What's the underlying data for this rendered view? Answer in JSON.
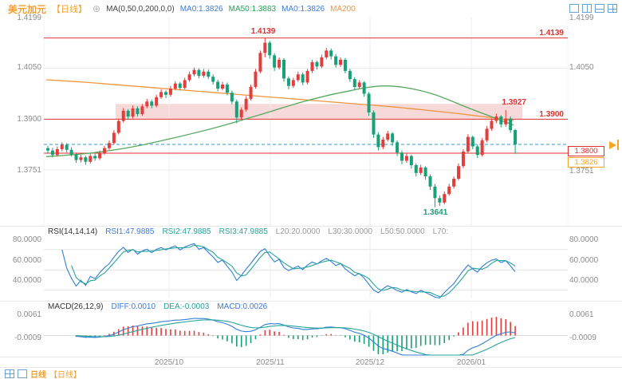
{
  "header": {
    "symbol": "美元加元",
    "period": "【日线】",
    "ma_settings": "MA(0,50,0,200,0,0)",
    "ma_items": [
      {
        "label": "MA0:1.3826"
      },
      {
        "label": "MA50:1.3883"
      },
      {
        "label": "MA0:1.3826"
      },
      {
        "label": "MA200"
      }
    ]
  },
  "icons": {
    "add_indicator": "⊕",
    "topbar_layout": [
      "layout-single",
      "layout-split-vertical",
      "layout-split-horizontal",
      "layout-grid"
    ],
    "bottombar_layout": [
      "layout-grid",
      "layout-single"
    ],
    "go_to_latest": "arrow-right"
  },
  "axes": {
    "price_left": [
      "1.4199",
      "1.4050",
      "1.3900",
      "1.3751"
    ],
    "price_right": [
      "1.4199",
      "1.4050",
      "1.3751"
    ],
    "rsi": [
      "80.0000",
      "60.0000",
      "40.0000"
    ],
    "macd": [
      "0.0061",
      "-0.0009"
    ],
    "dates": [
      "2025/10",
      "2025/11",
      "2025/12",
      "2026/01"
    ]
  },
  "levels_labels": {
    "peak": "1.4139",
    "r1": "1.4139",
    "r2": "1.3900",
    "recent_high": "1.3927",
    "support_tag": "1.3800",
    "price_tag": "1.3826",
    "low": "1.3641"
  },
  "rsi_header": {
    "title": "RSI(14,14,14)",
    "i1": "RSI1:47.9885",
    "i2": "RSI2:47.9885",
    "i3": "RSI3:47.9885",
    "l20": "L20:20.0000",
    "l30": "L30:30.0000",
    "l50": "L50:50.0000",
    "l70": "L70:"
  },
  "macd_header": {
    "title": "MACD(26,12,9)",
    "diff": "DIFF:0.0010",
    "dea": "DEA:-0.0003",
    "macd": "MACD:0.0026"
  },
  "bottom": {
    "label": "日线",
    "tag": "【日线】"
  },
  "chart_data": {
    "type": "candlestick",
    "title": "美元加元 日线 (USD/CAD Daily)",
    "x_axis_months": [
      "2025/10",
      "2025/11",
      "2025/12",
      "2026/01"
    ],
    "y_axis_ticks": [
      1.4199,
      1.405,
      1.39,
      1.3751
    ],
    "y_range": [
      1.3598,
      1.4199
    ],
    "levels": {
      "resistance_top": 1.4139,
      "resistance": 1.39,
      "support": 1.38,
      "current_price": 1.3826,
      "recent_high": 1.3927,
      "recent_low": 1.3641,
      "zone": [
        1.39,
        1.3945
      ]
    },
    "ma": {
      "ma0": 1.3826,
      "ma50": 1.3883,
      "ma50_curve": [
        1.379,
        1.38,
        1.3818,
        1.3845,
        1.3876,
        1.3912,
        1.395,
        1.398,
        1.3998,
        1.3978,
        1.393,
        1.3883
      ],
      "ma200_curve": [
        1.4016,
        1.4008,
        1.3998,
        1.3988,
        1.3978,
        1.3968,
        1.3958,
        1.3948,
        1.3938,
        1.3926,
        1.3912,
        1.3896
      ]
    },
    "candles": [
      [
        1.3815,
        1.3822,
        1.38,
        1.3808
      ],
      [
        1.3808,
        1.3816,
        1.3788,
        1.3795
      ],
      [
        1.3795,
        1.382,
        1.379,
        1.3812
      ],
      [
        1.3812,
        1.3832,
        1.3806,
        1.3825
      ],
      [
        1.3825,
        1.383,
        1.3802,
        1.381
      ],
      [
        1.381,
        1.3818,
        1.379,
        1.3796
      ],
      [
        1.3796,
        1.3802,
        1.3772,
        1.378
      ],
      [
        1.378,
        1.3795,
        1.3773,
        1.3788
      ],
      [
        1.3788,
        1.3793,
        1.3766,
        1.3775
      ],
      [
        1.3775,
        1.38,
        1.377,
        1.3792
      ],
      [
        1.3792,
        1.3798,
        1.3778,
        1.3785
      ],
      [
        1.3785,
        1.3808,
        1.378,
        1.38
      ],
      [
        1.38,
        1.3822,
        1.3795,
        1.3815
      ],
      [
        1.3815,
        1.3838,
        1.381,
        1.383
      ],
      [
        1.383,
        1.3868,
        1.3825,
        1.386
      ],
      [
        1.386,
        1.3902,
        1.3855,
        1.3895
      ],
      [
        1.3895,
        1.3933,
        1.389,
        1.3925
      ],
      [
        1.3925,
        1.393,
        1.39,
        1.3908
      ],
      [
        1.3908,
        1.394,
        1.3902,
        1.3932
      ],
      [
        1.3932,
        1.3938,
        1.3908,
        1.3915
      ],
      [
        1.3915,
        1.3945,
        1.391,
        1.3938
      ],
      [
        1.3938,
        1.396,
        1.3932,
        1.3952
      ],
      [
        1.3952,
        1.3958,
        1.3932,
        1.394
      ],
      [
        1.394,
        1.3972,
        1.3935,
        1.3965
      ],
      [
        1.3965,
        1.3988,
        1.396,
        1.398
      ],
      [
        1.398,
        1.3985,
        1.3962,
        1.3972
      ],
      [
        1.3972,
        1.3998,
        1.3966,
        1.399
      ],
      [
        1.399,
        1.4012,
        1.3985,
        1.4005
      ],
      [
        1.4005,
        1.401,
        1.3985,
        1.3992
      ],
      [
        1.3992,
        1.4022,
        1.3988,
        1.4015
      ],
      [
        1.4015,
        1.404,
        1.401,
        1.4032
      ],
      [
        1.4032,
        1.4052,
        1.4026,
        1.4045
      ],
      [
        1.4045,
        1.405,
        1.402,
        1.4028
      ],
      [
        1.4028,
        1.4048,
        1.4022,
        1.404
      ],
      [
        1.404,
        1.4046,
        1.4018,
        1.4025
      ],
      [
        1.4025,
        1.4032,
        1.4002,
        1.401
      ],
      [
        1.401,
        1.4016,
        1.3982,
        1.399
      ],
      [
        1.399,
        1.401,
        1.3985,
        1.4002
      ],
      [
        1.4002,
        1.4008,
        1.397,
        1.3978
      ],
      [
        1.3978,
        1.3984,
        1.3944,
        1.3952
      ],
      [
        1.3952,
        1.3958,
        1.3888,
        1.3905
      ],
      [
        1.3905,
        1.3935,
        1.3898,
        1.3928
      ],
      [
        1.3928,
        1.3968,
        1.3922,
        1.396
      ],
      [
        1.396,
        1.4002,
        1.3955,
        1.3995
      ],
      [
        1.3995,
        1.4048,
        1.399,
        1.404
      ],
      [
        1.404,
        1.4102,
        1.4035,
        1.4095
      ],
      [
        1.4095,
        1.4139,
        1.4082,
        1.4125
      ],
      [
        1.4125,
        1.413,
        1.4078,
        1.4088
      ],
      [
        1.4088,
        1.4094,
        1.4042,
        1.4052
      ],
      [
        1.4052,
        1.4082,
        1.4046,
        1.4075
      ],
      [
        1.4075,
        1.408,
        1.401,
        1.402
      ],
      [
        1.402,
        1.4026,
        1.3988,
        1.3998
      ],
      [
        1.3998,
        1.4022,
        1.3992,
        1.4015
      ],
      [
        1.4015,
        1.404,
        1.401,
        1.4032
      ],
      [
        1.4032,
        1.4038,
        1.4,
        1.4008
      ],
      [
        1.4008,
        1.4048,
        1.4002,
        1.4042
      ],
      [
        1.4042,
        1.4075,
        1.4036,
        1.4068
      ],
      [
        1.4068,
        1.4072,
        1.4046,
        1.4055
      ],
      [
        1.4055,
        1.409,
        1.405,
        1.4082
      ],
      [
        1.4082,
        1.411,
        1.4076,
        1.4102
      ],
      [
        1.4102,
        1.4108,
        1.4076,
        1.4085
      ],
      [
        1.4085,
        1.4092,
        1.4052,
        1.406
      ],
      [
        1.406,
        1.4082,
        1.4054,
        1.4075
      ],
      [
        1.4075,
        1.408,
        1.4035,
        1.4042
      ],
      [
        1.4042,
        1.4048,
        1.401,
        1.4018
      ],
      [
        1.4018,
        1.4024,
        1.3986,
        1.3995
      ],
      [
        1.3995,
        1.4015,
        1.399,
        1.4008
      ],
      [
        1.4008,
        1.4012,
        1.3966,
        1.3975
      ],
      [
        1.3975,
        1.398,
        1.391,
        1.392
      ],
      [
        1.392,
        1.3926,
        1.3845,
        1.3855
      ],
      [
        1.3855,
        1.3862,
        1.3808,
        1.3818
      ],
      [
        1.3818,
        1.3848,
        1.3812,
        1.384
      ],
      [
        1.384,
        1.3866,
        1.3835,
        1.3858
      ],
      [
        1.3858,
        1.3862,
        1.3822,
        1.3832
      ],
      [
        1.3832,
        1.3838,
        1.3792,
        1.3802
      ],
      [
        1.3802,
        1.3808,
        1.3768,
        1.3778
      ],
      [
        1.3778,
        1.38,
        1.3772,
        1.3792
      ],
      [
        1.3792,
        1.3796,
        1.3755,
        1.3765
      ],
      [
        1.3765,
        1.377,
        1.3732,
        1.3742
      ],
      [
        1.3742,
        1.3766,
        1.3736,
        1.3758
      ],
      [
        1.3758,
        1.3762,
        1.3722,
        1.3732
      ],
      [
        1.3732,
        1.3738,
        1.3692,
        1.3702
      ],
      [
        1.3702,
        1.371,
        1.3641,
        1.3668
      ],
      [
        1.3668,
        1.3676,
        1.3645,
        1.3655
      ],
      [
        1.3655,
        1.3688,
        1.365,
        1.368
      ],
      [
        1.368,
        1.371,
        1.3675,
        1.3702
      ],
      [
        1.3702,
        1.3732,
        1.3696,
        1.3725
      ],
      [
        1.3725,
        1.377,
        1.372,
        1.3762
      ],
      [
        1.3762,
        1.3812,
        1.3756,
        1.3805
      ],
      [
        1.3805,
        1.3856,
        1.38,
        1.3848
      ],
      [
        1.3848,
        1.3852,
        1.3812,
        1.382
      ],
      [
        1.382,
        1.3826,
        1.3786,
        1.3795
      ],
      [
        1.3795,
        1.3845,
        1.379,
        1.3838
      ],
      [
        1.3838,
        1.388,
        1.3832,
        1.3872
      ],
      [
        1.3872,
        1.3902,
        1.3866,
        1.3895
      ],
      [
        1.3895,
        1.3916,
        1.3888,
        1.3908
      ],
      [
        1.3908,
        1.3912,
        1.3876,
        1.3885
      ],
      [
        1.3885,
        1.3927,
        1.3878,
        1.3902
      ],
      [
        1.3902,
        1.3908,
        1.386,
        1.3868
      ],
      [
        1.3868,
        1.3872,
        1.3798,
        1.3826
      ]
    ],
    "indicators": {
      "rsi": {
        "params": [
          14,
          14,
          14
        ],
        "rsi1": 47.9885,
        "rsi2": 47.9885,
        "rsi3": 47.9885,
        "levels": [
          20,
          30,
          50,
          70
        ],
        "axis_ticks": [
          80,
          60,
          40
        ]
      },
      "macd": {
        "params": [
          26,
          12,
          9
        ],
        "diff": 0.001,
        "dea": -0.0003,
        "macd": 0.0026,
        "axis_ticks": [
          0.0061,
          -0.0009
        ]
      }
    },
    "palette": {
      "up": "#e23e3e",
      "down": "#18a076",
      "ma50": "#55a85c",
      "ma200": "#f0953f",
      "zone": "#f8d9d9",
      "level": "#e03030",
      "dashed": "#2b9bd7",
      "rsi1": "#2f7ed8",
      "rsi2": "#27a39a",
      "macd_diff": "#2f7ed8",
      "macd_dea": "#27a39a",
      "grid": "#ececec",
      "axis_text": "#8c8c8c",
      "accent_orange": "#f5a623"
    }
  }
}
